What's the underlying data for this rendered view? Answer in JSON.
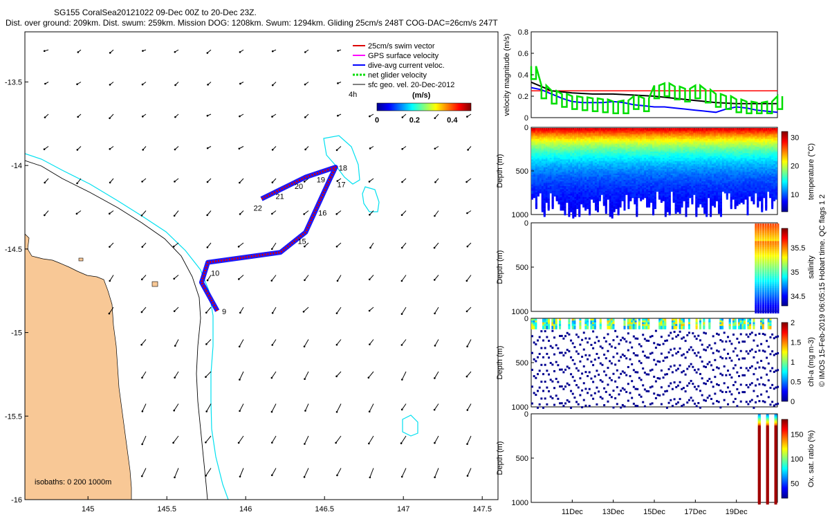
{
  "chart_data": [
    {
      "type": "map",
      "title_line1": "SG155 CoralSea20121022 09-Dec 00Z to 20-Dec 23Z.",
      "title_line2": "Dist. over ground: 209km. Dist. swum: 259km. Mission DOG: 1208km. Swum: 1294km. Gliding 25cm/s 248T COG-DAC=26cm/s 247T",
      "xlim": [
        144.6,
        147.6
      ],
      "ylim": [
        -16.0,
        -13.2
      ],
      "xticks": [
        145,
        145.5,
        146,
        146.5,
        147,
        147.5
      ],
      "xtick_labels": [
        "145",
        "145.5",
        "146",
        "146.5",
        "147",
        "147.5"
      ],
      "yticks": [
        -13.5,
        -14,
        -14.5,
        -15,
        -15.5,
        -16
      ],
      "ytick_labels": [
        "-13.5",
        "-14",
        "-14.5",
        "-15",
        "-15.5",
        "-16"
      ],
      "legend": [
        {
          "label": "25cm/s swim vector",
          "color": "#dd0000"
        },
        {
          "label": "GPS surface velocity",
          "color": "#ff00ff"
        },
        {
          "label": "dive-avg current veloc.",
          "color": "#0000ff"
        },
        {
          "label": "net glider velocity",
          "color": "#00dd00"
        },
        {
          "label": "sfc geo. vel. 20-Dec-2012",
          "color": "#000000"
        }
      ],
      "interval_label": "4h",
      "colorbar": {
        "label": "(m/s)",
        "ticks": [
          0,
          0.2,
          0.4
        ],
        "tick_labels": [
          "0",
          "0.2",
          "0.4"
        ],
        "range": [
          0,
          0.5
        ]
      },
      "track": [
        [
          145.82,
          -14.87
        ],
        [
          145.72,
          -14.7
        ],
        [
          145.76,
          -14.58
        ],
        [
          146.22,
          -14.52
        ],
        [
          146.38,
          -14.4
        ],
        [
          146.53,
          -14.09
        ],
        [
          146.57,
          -14.01
        ],
        [
          146.38,
          -14.07
        ],
        [
          146.1,
          -14.2
        ]
      ],
      "day_labels": [
        {
          "text": "9",
          "lon": 145.85,
          "lat": -14.89
        },
        {
          "text": "10",
          "lon": 145.78,
          "lat": -14.66
        },
        {
          "text": "15",
          "lon": 146.33,
          "lat": -14.47
        },
        {
          "text": "16",
          "lon": 146.46,
          "lat": -14.3
        },
        {
          "text": "17",
          "lon": 146.58,
          "lat": -14.13
        },
        {
          "text": "18",
          "lon": 146.59,
          "lat": -14.03
        },
        {
          "text": "19",
          "lon": 146.45,
          "lat": -14.1
        },
        {
          "text": "20",
          "lon": 146.31,
          "lat": -14.14
        },
        {
          "text": "21",
          "lon": 146.19,
          "lat": -14.2
        },
        {
          "text": "22",
          "lon": 146.05,
          "lat": -14.27
        }
      ],
      "isobath_label": "isobaths: 0   200  1000m"
    },
    {
      "type": "line",
      "ylabel": "velocity magnitude (m/s)",
      "ylim": [
        0,
        0.8
      ],
      "yticks": [
        0,
        0.2,
        0.4,
        0.6,
        0.8
      ],
      "ytick_labels": [
        "0",
        "0.2",
        "0.4",
        "0.6",
        "0.8"
      ],
      "xlim": [
        9,
        21
      ],
      "series": [
        {
          "name": "25cm/s swim vector",
          "color": "#ff0000",
          "x": [
            9,
            21
          ],
          "values": [
            0.25,
            0.25
          ]
        },
        {
          "name": "net glider velocity",
          "color": "#000000",
          "x": [
            9,
            10,
            11,
            12,
            13,
            14,
            15,
            16,
            17,
            18,
            19,
            20,
            21
          ],
          "values": [
            0.33,
            0.25,
            0.23,
            0.22,
            0.22,
            0.21,
            0.2,
            0.18,
            0.16,
            0.14,
            0.13,
            0.13,
            0.13
          ]
        },
        {
          "name": "dive-avg current veloc.",
          "color": "#0000ff",
          "x": [
            9,
            9.5,
            10,
            10.5,
            11,
            11.5,
            12,
            12.5,
            13,
            13.5,
            14,
            14.5,
            15,
            15.5,
            16,
            16.5,
            17,
            17.5,
            18,
            18.5,
            19,
            19.5,
            20,
            20.5,
            21
          ],
          "values": [
            0.28,
            0.26,
            0.22,
            0.18,
            0.15,
            0.14,
            0.14,
            0.14,
            0.15,
            0.14,
            0.12,
            0.11,
            0.1,
            0.1,
            0.09,
            0.08,
            0.07,
            0.06,
            0.05,
            0.08,
            0.1,
            0.09,
            0.07,
            0.06,
            0.05
          ]
        },
        {
          "name": "GPS surface velocity",
          "color": "#00dd00",
          "x": [
            9,
            9.5,
            10,
            10.5,
            11,
            11.5,
            12,
            12.5,
            13,
            13.5,
            14,
            14.5,
            15,
            15.5,
            16,
            16.5,
            17,
            17.5,
            18,
            18.5,
            19,
            19.5,
            20,
            20.5,
            21
          ],
          "values": [
            0.48,
            0.3,
            0.25,
            0.22,
            0.2,
            0.19,
            0.18,
            0.17,
            0.15,
            0.16,
            0.2,
            0.18,
            0.3,
            0.32,
            0.29,
            0.27,
            0.3,
            0.26,
            0.22,
            0.2,
            0.17,
            0.15,
            0.14,
            0.15,
            0.2
          ]
        }
      ]
    },
    {
      "type": "heatmap",
      "ylabel": "Depth (m)",
      "clabel": "temperature (°C)",
      "yticks": [
        0,
        500,
        1000
      ],
      "ytick_labels": [
        "0",
        "500",
        "1000"
      ],
      "cticks": [
        10,
        20,
        30
      ],
      "ctick_labels": [
        "10",
        "20",
        "30"
      ],
      "crange": [
        4,
        32
      ],
      "coverage": [
        9,
        21
      ],
      "max_depth": 1000
    },
    {
      "type": "heatmap",
      "ylabel": "Depth (m)",
      "clabel": "salinity",
      "yticks": [
        0,
        500,
        1000
      ],
      "ytick_labels": [
        "0",
        "500",
        "1000"
      ],
      "cticks": [
        34.5,
        35,
        35.5
      ],
      "ctick_labels": [
        "34.5",
        "35",
        "35.5"
      ],
      "crange": [
        34.3,
        35.9
      ],
      "coverage": [
        19.9,
        21
      ],
      "max_depth": 1000
    },
    {
      "type": "heatmap",
      "ylabel": "Depth (m)",
      "clabel": "chl-a (mg m-3)",
      "yticks": [
        0,
        500,
        1000
      ],
      "ytick_labels": [
        "0",
        "500",
        "1000"
      ],
      "cticks": [
        0,
        0.5,
        1,
        1.5,
        2
      ],
      "ctick_labels": [
        "0",
        "0.5",
        "1",
        "1.5",
        "2"
      ],
      "crange": [
        0,
        2
      ],
      "coverage": [
        9,
        21
      ],
      "max_depth": 1000
    },
    {
      "type": "heatmap",
      "ylabel": "Depth (m)",
      "clabel": "Ox. sat. ratio (%)",
      "yticks": [
        0,
        500,
        1000
      ],
      "ytick_labels": [
        "0",
        "500",
        "1000"
      ],
      "cticks": [
        50,
        100,
        150
      ],
      "ctick_labels": [
        "50",
        "100",
        "150"
      ],
      "crange": [
        20,
        180
      ],
      "coverage": [
        19.9,
        21
      ],
      "max_depth": 1000,
      "xticks": [
        11,
        13,
        15,
        17,
        19
      ],
      "xtick_labels": [
        "11Dec",
        "13Dec",
        "15Dec",
        "17Dec",
        "19Dec"
      ]
    }
  ],
  "side_label": "© IMOS 15-Feb-2019 06:05:15 Hobart time. QC flags 1  2"
}
